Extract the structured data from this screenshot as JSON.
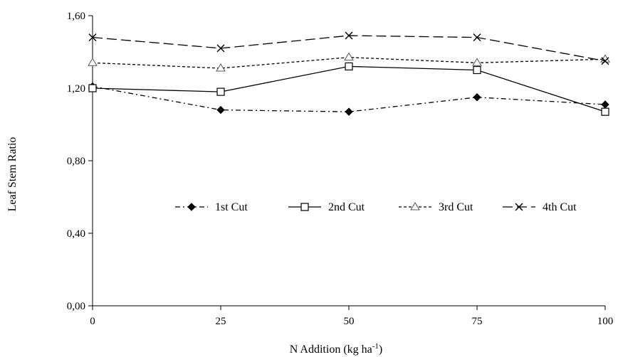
{
  "chart_data": {
    "type": "line",
    "x": [
      0,
      25,
      50,
      75,
      100
    ],
    "x_tick_labels": [
      "0",
      "25",
      "50",
      "75",
      "100"
    ],
    "ylim": [
      0,
      1.6
    ],
    "y_ticks": [
      0,
      0.4,
      0.8,
      1.2,
      1.6
    ],
    "y_tick_labels": [
      "0,00",
      "0,40",
      "0,80",
      "1,20",
      "1,60"
    ],
    "xlabel": "N Addition (kg ha",
    "xlabel_sup": "-1",
    "xlabel_end": ")",
    "ylabel": "Leaf Stem Ratio",
    "grid": false,
    "legend_position": "center",
    "series": [
      {
        "name": "1st Cut",
        "marker": "diamond-filled",
        "dash": "dash-dot",
        "values": [
          1.21,
          1.08,
          1.07,
          1.15,
          1.11
        ]
      },
      {
        "name": "2nd Cut",
        "marker": "square-open",
        "dash": "solid",
        "values": [
          1.2,
          1.18,
          1.32,
          1.3,
          1.07
        ]
      },
      {
        "name": "3rd Cut",
        "marker": "triangle-open",
        "dash": "short-dash",
        "values": [
          1.34,
          1.31,
          1.37,
          1.34,
          1.36
        ]
      },
      {
        "name": "4th Cut",
        "marker": "x",
        "dash": "long-dash",
        "values": [
          1.48,
          1.42,
          1.49,
          1.48,
          1.35
        ]
      }
    ]
  }
}
